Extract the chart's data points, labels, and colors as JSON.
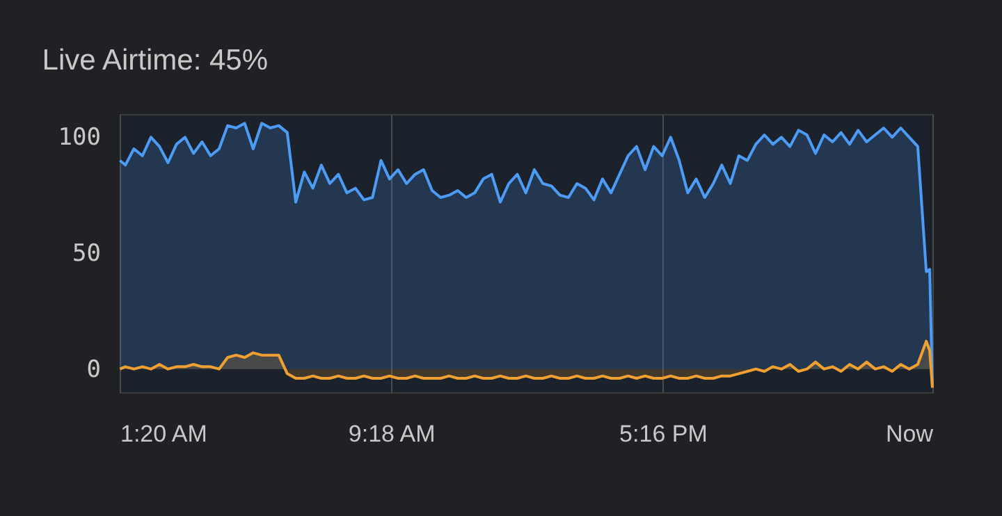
{
  "chart_data": {
    "type": "area",
    "title": "Live Airtime: 45%",
    "x": [
      1.34,
      1.5,
      1.75,
      2.0,
      2.25,
      2.5,
      2.75,
      3.0,
      3.25,
      3.5,
      3.75,
      4.0,
      4.25,
      4.5,
      4.75,
      5.0,
      5.25,
      5.5,
      5.75,
      6.0,
      6.25,
      6.5,
      6.75,
      7.0,
      7.25,
      7.5,
      7.75,
      8.0,
      8.25,
      8.5,
      8.75,
      9.0,
      9.25,
      9.5,
      9.75,
      10.0,
      10.25,
      10.5,
      10.75,
      11.0,
      11.25,
      11.5,
      11.75,
      12.0,
      12.25,
      12.5,
      12.75,
      13.0,
      13.25,
      13.5,
      13.75,
      14.0,
      14.25,
      14.5,
      14.75,
      15.0,
      15.25,
      15.5,
      15.75,
      16.0,
      16.25,
      16.5,
      16.75,
      17.0,
      17.25,
      17.5,
      17.75,
      18.0,
      18.25,
      18.5,
      18.75,
      19.0,
      19.25,
      19.5,
      19.75,
      20.0,
      20.25,
      20.5,
      20.75,
      21.0,
      21.25,
      21.5,
      21.75,
      22.0,
      22.25,
      22.5,
      22.75,
      23.0,
      23.25,
      23.5,
      23.75,
      24.0,
      24.25,
      24.5,
      24.75,
      25.0,
      25.1,
      25.18
    ],
    "series": [
      {
        "color": "#4c9bf5",
        "values": [
          90,
          88,
          95,
          92,
          100,
          96,
          89,
          97,
          100,
          93,
          98,
          92,
          95,
          105,
          104,
          106,
          95,
          106,
          104,
          105,
          102,
          72,
          85,
          78,
          88,
          80,
          84,
          76,
          78,
          73,
          74,
          90,
          82,
          86,
          80,
          84,
          86,
          77,
          74,
          75,
          77,
          74,
          76,
          82,
          84,
          72,
          80,
          84,
          76,
          86,
          80,
          79,
          75,
          74,
          80,
          78,
          73,
          82,
          76,
          84,
          92,
          96,
          86,
          96,
          92,
          100,
          90,
          76,
          82,
          74,
          80,
          88,
          80,
          92,
          90,
          97,
          101,
          97,
          100,
          96,
          103,
          101,
          93,
          101,
          98,
          102,
          97,
          103,
          98,
          101,
          104,
          100,
          104,
          100,
          96,
          42,
          43,
          -8
        ]
      },
      {
        "color": "#f0a030",
        "values": [
          0,
          1,
          0,
          1,
          0,
          2,
          0,
          1,
          1,
          2,
          1,
          1,
          0,
          5,
          6,
          5,
          7,
          6,
          6,
          6,
          -2,
          -4,
          -4,
          -3,
          -4,
          -4,
          -3,
          -4,
          -4,
          -3,
          -4,
          -4,
          -3,
          -4,
          -4,
          -3,
          -4,
          -4,
          -4,
          -3,
          -4,
          -4,
          -3,
          -4,
          -4,
          -3,
          -4,
          -4,
          -3,
          -4,
          -4,
          -3,
          -4,
          -4,
          -3,
          -4,
          -4,
          -3,
          -4,
          -4,
          -3,
          -4,
          -3,
          -4,
          -4,
          -3,
          -4,
          -4,
          -3,
          -4,
          -4,
          -3,
          -3,
          -2,
          -1,
          0,
          -1,
          1,
          0,
          2,
          -1,
          0,
          3,
          0,
          1,
          -1,
          2,
          0,
          3,
          0,
          1,
          -1,
          2,
          0,
          2,
          12,
          8,
          -8
        ]
      }
    ],
    "xlim": [
      1.333,
      25.18
    ],
    "xticks": [
      {
        "value": 1.333,
        "label": "1:20 AM"
      },
      {
        "value": 9.3,
        "label": "9:18 AM"
      },
      {
        "value": 17.267,
        "label": "5:16 PM"
      },
      {
        "value": 25.18,
        "label": "Now"
      }
    ],
    "ylim": [
      -10,
      110
    ],
    "yticks": [
      0,
      50,
      100
    ],
    "grid": "x"
  }
}
